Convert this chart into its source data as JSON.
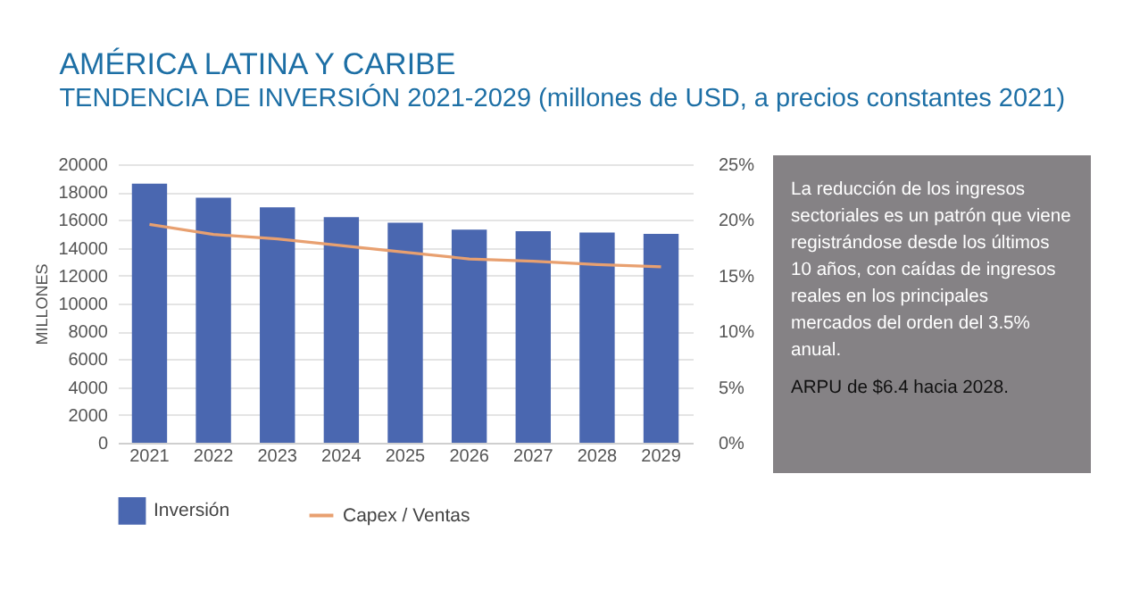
{
  "chart_data": {
    "type": "bar",
    "title": "AMÉRICA LATINA Y CARIBE",
    "subtitle": "TENDENCIA DE INVERSIÓN 2021-2029 (millones de USD, a precios constantes 2021)",
    "ylabel": "MILLONES",
    "categories": [
      "2021",
      "2022",
      "2023",
      "2024",
      "2025",
      "2026",
      "2027",
      "2028",
      "2029"
    ],
    "series": [
      {
        "name": "Inversión",
        "color": "#4a67b0",
        "values": [
          18600,
          17600,
          16900,
          16200,
          15800,
          15300,
          15200,
          15100,
          15000
        ]
      },
      {
        "name": "Capex / Ventas",
        "type": "line",
        "axis": "y2",
        "color": "#e8a070",
        "values": [
          19.6,
          18.7,
          18.3,
          17.7,
          17.1,
          16.5,
          16.3,
          16.0,
          15.8
        ]
      }
    ],
    "ylim": [
      0,
      20000
    ],
    "yticks": [
      0,
      2000,
      4000,
      6000,
      8000,
      10000,
      12000,
      14000,
      16000,
      18000,
      20000
    ],
    "y2lim": [
      0,
      25
    ],
    "y2ticks": [
      {
        "value": 0,
        "label": "0%"
      },
      {
        "value": 5,
        "label": "5%"
      },
      {
        "value": 10,
        "label": "10%"
      },
      {
        "value": 15,
        "label": "15%"
      },
      {
        "value": 20,
        "label": "20%"
      },
      {
        "value": 25,
        "label": "25%"
      }
    ],
    "grid": "y",
    "legend": "bottom",
    "annotations": [
      "La reducción de los ingresos sectoriales es un patrón que viene registrándose desde los últimos 10 años, con caídas de ingresos reales en los principales mercados del orden del 3.5% anual.",
      "ARPU de $6.4 hacia 2028."
    ]
  }
}
